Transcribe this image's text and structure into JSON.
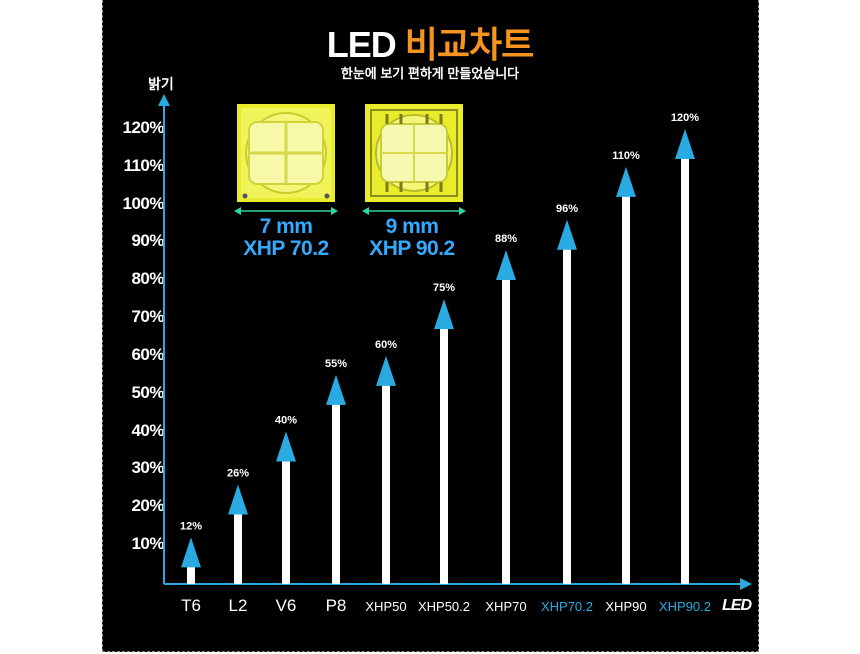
{
  "title": {
    "part1": "LED",
    "part2": "비교차트"
  },
  "subtitle": "한눈에 보기 편하게 만들었습니다",
  "chart_data": {
    "type": "bar",
    "ylabel": "밝기",
    "xlabel": "LED",
    "ylim": [
      0,
      120
    ],
    "yticks": [
      "10%",
      "20%",
      "30%",
      "40%",
      "50%",
      "60%",
      "70%",
      "80%",
      "90%",
      "100%",
      "110%",
      "120%"
    ],
    "categories": [
      "T6",
      "L2",
      "V6",
      "P8",
      "XHP50",
      "XHP50.2",
      "XHP70",
      "XHP70.2",
      "XHP90",
      "XHP90.2"
    ],
    "values": [
      12,
      26,
      40,
      55,
      60,
      75,
      88,
      96,
      110,
      120
    ],
    "value_labels": [
      "12%",
      "26%",
      "40%",
      "55%",
      "60%",
      "75%",
      "88%",
      "96%",
      "110%",
      "120%"
    ],
    "highlighted_categories": [
      "XHP70.2",
      "XHP90.2"
    ],
    "colors": {
      "bar": "#ffffff",
      "arrow": "#29abe2",
      "highlight_text": "#29abe2",
      "axis": "#29abe2"
    }
  },
  "chips": [
    {
      "size": "7 mm",
      "model": "XHP 70.2"
    },
    {
      "size": "9 mm",
      "model": "XHP 90.2"
    }
  ]
}
